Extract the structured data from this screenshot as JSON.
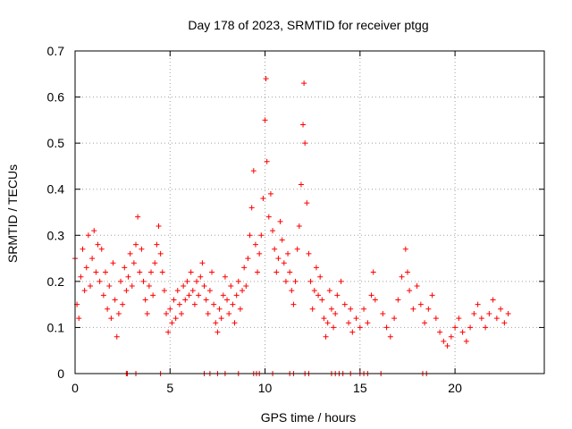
{
  "chart_data": {
    "type": "scatter",
    "title": "Day 178 of 2023, SRMTID for receiver ptgg",
    "xlabel": "GPS time / hours",
    "ylabel": "SRMTID / TECUs",
    "xlim": [
      0,
      24.7
    ],
    "ylim": [
      0,
      0.7
    ],
    "grid": true,
    "marker": "+",
    "color": "#ff0000",
    "x_ticks": [
      0,
      5,
      10,
      15,
      20
    ],
    "x_tick_labels": [
      "0",
      "5",
      "10",
      "15",
      "20"
    ],
    "y_ticks": [
      0,
      0.1,
      0.2,
      0.3,
      0.4,
      0.5,
      0.6,
      0.7
    ],
    "y_tick_labels": [
      "0",
      "0.1",
      "0.2",
      "0.3",
      "0.4",
      "0.5",
      "0.6",
      "0.7"
    ],
    "series": [
      {
        "name": "SRMTID",
        "points": [
          [
            0.0,
            0.25
          ],
          [
            0.1,
            0.15
          ],
          [
            0.2,
            0.12
          ],
          [
            0.3,
            0.21
          ],
          [
            0.4,
            0.27
          ],
          [
            0.5,
            0.18
          ],
          [
            0.6,
            0.23
          ],
          [
            0.7,
            0.3
          ],
          [
            0.8,
            0.19
          ],
          [
            0.9,
            0.25
          ],
          [
            1.0,
            0.31
          ],
          [
            1.1,
            0.22
          ],
          [
            1.2,
            0.28
          ],
          [
            1.3,
            0.2
          ],
          [
            1.4,
            0.27
          ],
          [
            1.5,
            0.17
          ],
          [
            1.6,
            0.22
          ],
          [
            1.7,
            0.14
          ],
          [
            1.8,
            0.19
          ],
          [
            1.9,
            0.12
          ],
          [
            2.0,
            0.24
          ],
          [
            2.1,
            0.16
          ],
          [
            2.2,
            0.08
          ],
          [
            2.3,
            0.13
          ],
          [
            2.4,
            0.2
          ],
          [
            2.5,
            0.15
          ],
          [
            2.6,
            0.23
          ],
          [
            2.7,
            0.18
          ],
          [
            2.8,
            0.21
          ],
          [
            2.9,
            0.26
          ],
          [
            3.0,
            0.19
          ],
          [
            3.1,
            0.24
          ],
          [
            3.2,
            0.28
          ],
          [
            3.3,
            0.34
          ],
          [
            3.4,
            0.22
          ],
          [
            3.5,
            0.27
          ],
          [
            3.6,
            0.2
          ],
          [
            3.7,
            0.16
          ],
          [
            3.8,
            0.13
          ],
          [
            3.9,
            0.19
          ],
          [
            4.0,
            0.22
          ],
          [
            4.1,
            0.17
          ],
          [
            4.2,
            0.24
          ],
          [
            4.3,
            0.28
          ],
          [
            4.4,
            0.32
          ],
          [
            4.5,
            0.26
          ],
          [
            4.6,
            0.22
          ],
          [
            4.7,
            0.18
          ],
          [
            4.8,
            0.13
          ],
          [
            4.9,
            0.09
          ],
          [
            5.0,
            0.14
          ],
          [
            5.1,
            0.11
          ],
          [
            5.2,
            0.16
          ],
          [
            5.3,
            0.12
          ],
          [
            5.4,
            0.18
          ],
          [
            5.5,
            0.15
          ],
          [
            5.6,
            0.13
          ],
          [
            5.7,
            0.19
          ],
          [
            5.8,
            0.16
          ],
          [
            5.9,
            0.2
          ],
          [
            6.0,
            0.17
          ],
          [
            6.1,
            0.22
          ],
          [
            6.2,
            0.18
          ],
          [
            6.3,
            0.15
          ],
          [
            6.4,
            0.2
          ],
          [
            6.5,
            0.17
          ],
          [
            6.6,
            0.21
          ],
          [
            6.7,
            0.24
          ],
          [
            6.8,
            0.19
          ],
          [
            6.9,
            0.16
          ],
          [
            7.0,
            0.13
          ],
          [
            7.1,
            0.18
          ],
          [
            7.2,
            0.22
          ],
          [
            7.3,
            0.15
          ],
          [
            7.4,
            0.11
          ],
          [
            7.5,
            0.09
          ],
          [
            7.6,
            0.14
          ],
          [
            7.7,
            0.12
          ],
          [
            7.8,
            0.17
          ],
          [
            7.9,
            0.21
          ],
          [
            8.0,
            0.16
          ],
          [
            8.1,
            0.13
          ],
          [
            8.2,
            0.19
          ],
          [
            8.3,
            0.15
          ],
          [
            8.4,
            0.11
          ],
          [
            8.5,
            0.17
          ],
          [
            8.6,
            0.2
          ],
          [
            8.7,
            0.14
          ],
          [
            8.8,
            0.18
          ],
          [
            8.9,
            0.23
          ],
          [
            9.0,
            0.19
          ],
          [
            9.1,
            0.25
          ],
          [
            9.2,
            0.3
          ],
          [
            9.3,
            0.36
          ],
          [
            9.4,
            0.44
          ],
          [
            9.5,
            0.28
          ],
          [
            9.6,
            0.22
          ],
          [
            9.7,
            0.26
          ],
          [
            9.8,
            0.3
          ],
          [
            9.9,
            0.38
          ],
          [
            10.0,
            0.55
          ],
          [
            10.05,
            0.64
          ],
          [
            10.1,
            0.46
          ],
          [
            10.2,
            0.34
          ],
          [
            10.3,
            0.39
          ],
          [
            10.4,
            0.31
          ],
          [
            10.5,
            0.27
          ],
          [
            10.6,
            0.22
          ],
          [
            10.7,
            0.25
          ],
          [
            10.8,
            0.33
          ],
          [
            10.9,
            0.29
          ],
          [
            11.0,
            0.24
          ],
          [
            11.1,
            0.2
          ],
          [
            11.2,
            0.26
          ],
          [
            11.3,
            0.22
          ],
          [
            11.4,
            0.18
          ],
          [
            11.5,
            0.15
          ],
          [
            11.6,
            0.2
          ],
          [
            11.7,
            0.27
          ],
          [
            11.8,
            0.32
          ],
          [
            11.9,
            0.41
          ],
          [
            12.0,
            0.54
          ],
          [
            12.05,
            0.63
          ],
          [
            12.1,
            0.5
          ],
          [
            12.2,
            0.37
          ],
          [
            12.3,
            0.26
          ],
          [
            12.4,
            0.2
          ],
          [
            12.5,
            0.14
          ],
          [
            12.6,
            0.18
          ],
          [
            12.7,
            0.23
          ],
          [
            12.8,
            0.17
          ],
          [
            12.9,
            0.21
          ],
          [
            13.0,
            0.16
          ],
          [
            13.1,
            0.12
          ],
          [
            13.2,
            0.08
          ],
          [
            13.3,
            0.11
          ],
          [
            13.4,
            0.18
          ],
          [
            13.5,
            0.14
          ],
          [
            13.6,
            0.1
          ],
          [
            13.7,
            0.13
          ],
          [
            13.8,
            0.17
          ],
          [
            14.0,
            0.2
          ],
          [
            14.2,
            0.15
          ],
          [
            14.4,
            0.11
          ],
          [
            14.5,
            0.14
          ],
          [
            14.6,
            0.09
          ],
          [
            14.8,
            0.12
          ],
          [
            15.0,
            0.1
          ],
          [
            15.2,
            0.14
          ],
          [
            15.4,
            0.11
          ],
          [
            15.6,
            0.17
          ],
          [
            15.7,
            0.22
          ],
          [
            15.8,
            0.16
          ],
          [
            16.2,
            0.13
          ],
          [
            16.4,
            0.1
          ],
          [
            16.6,
            0.08
          ],
          [
            16.8,
            0.12
          ],
          [
            17.0,
            0.16
          ],
          [
            17.2,
            0.21
          ],
          [
            17.4,
            0.27
          ],
          [
            17.5,
            0.22
          ],
          [
            17.6,
            0.18
          ],
          [
            17.8,
            0.14
          ],
          [
            18.0,
            0.19
          ],
          [
            18.2,
            0.15
          ],
          [
            18.4,
            0.11
          ],
          [
            18.6,
            0.14
          ],
          [
            18.8,
            0.17
          ],
          [
            19.0,
            0.12
          ],
          [
            19.2,
            0.09
          ],
          [
            19.4,
            0.07
          ],
          [
            19.6,
            0.06
          ],
          [
            19.8,
            0.08
          ],
          [
            20.0,
            0.1
          ],
          [
            20.2,
            0.12
          ],
          [
            20.4,
            0.09
          ],
          [
            20.6,
            0.07
          ],
          [
            20.8,
            0.1
          ],
          [
            21.0,
            0.13
          ],
          [
            21.2,
            0.15
          ],
          [
            21.4,
            0.12
          ],
          [
            21.6,
            0.1
          ],
          [
            21.8,
            0.13
          ],
          [
            22.0,
            0.16
          ],
          [
            22.2,
            0.12
          ],
          [
            22.4,
            0.14
          ],
          [
            22.6,
            0.11
          ],
          [
            22.8,
            0.13
          ]
        ]
      }
    ],
    "baseline_points": [
      2.7,
      2.75,
      3.2,
      4.5,
      6.8,
      7.1,
      7.5,
      7.9,
      8.6,
      9.4,
      9.55,
      9.7,
      10.4,
      11.3,
      11.5,
      12.1,
      12.3,
      13.5,
      13.7,
      13.9,
      14.1,
      14.5,
      15.0,
      15.2,
      15.4,
      16.1,
      18.3,
      18.5
    ]
  }
}
